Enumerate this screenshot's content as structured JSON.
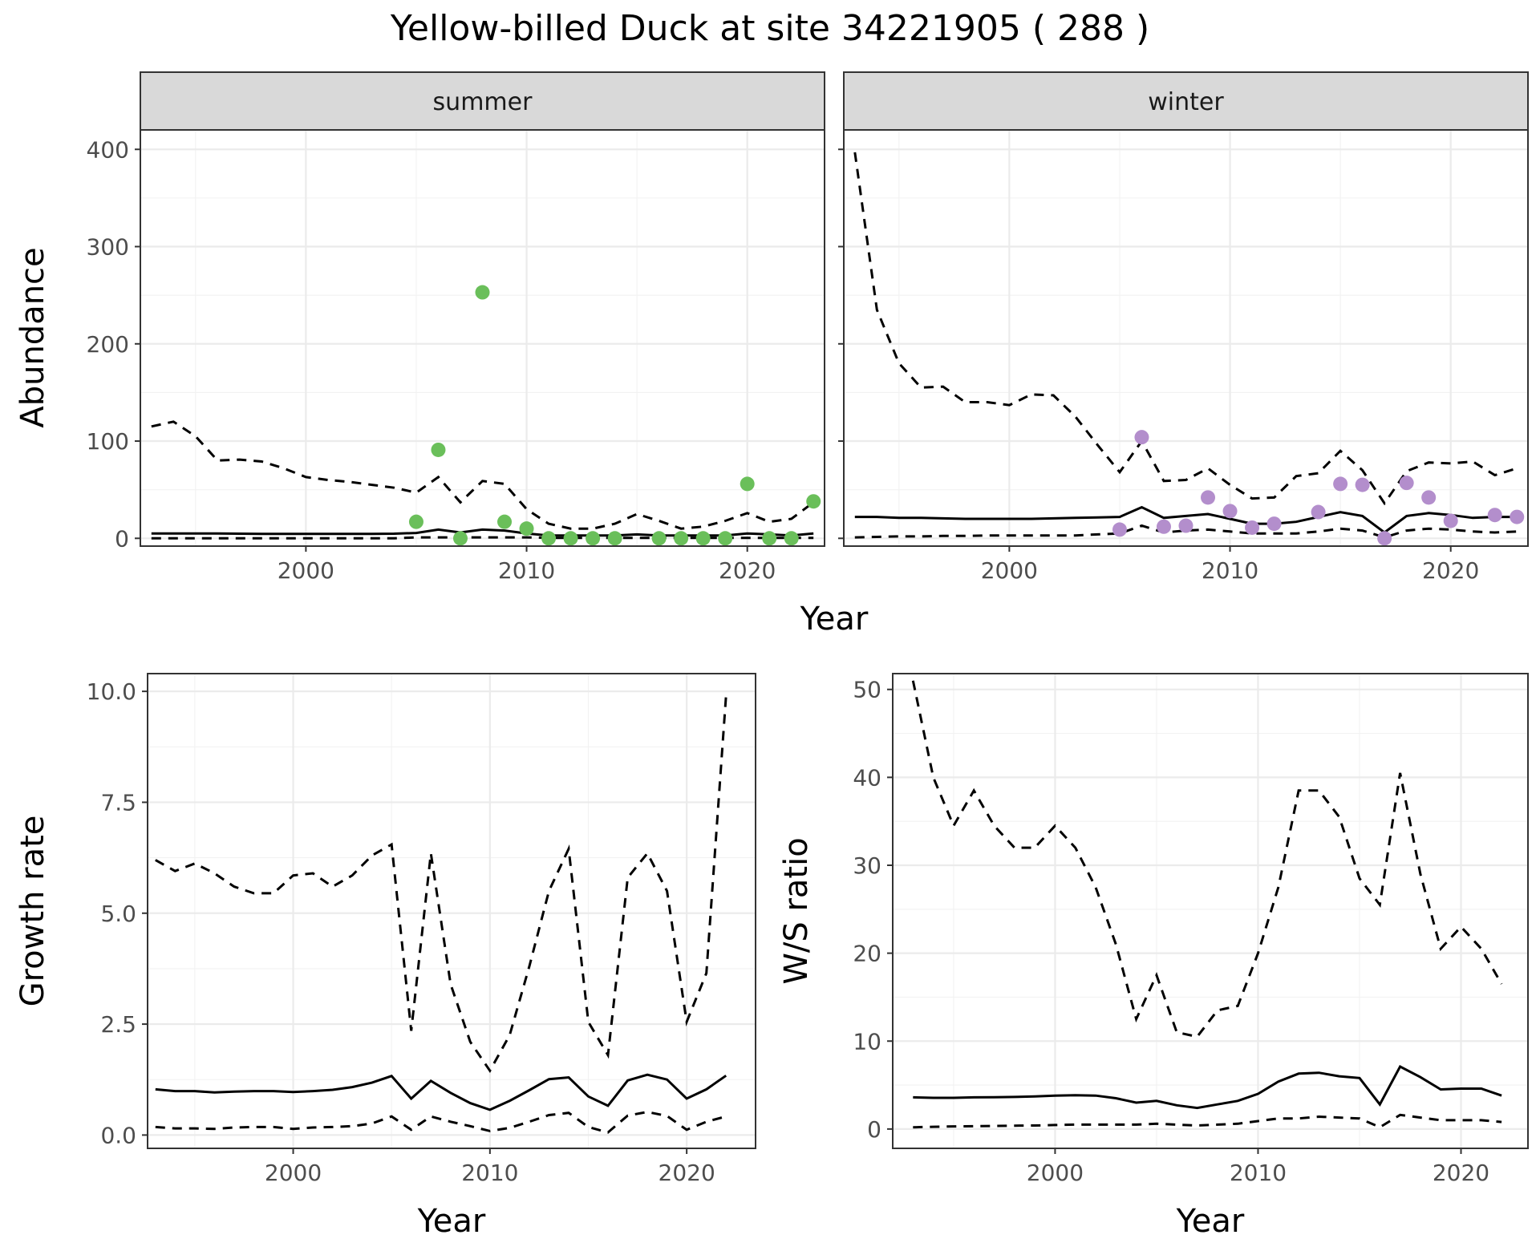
{
  "title": "Yellow-billed Duck at site 34221905 ( 288 )",
  "colors": {
    "summer_points": "#6ABF5A",
    "winter_points": "#B38ECC",
    "lines": "#000000"
  },
  "chart_data": [
    {
      "type": "line",
      "panel": "summer",
      "facet_label": "summer",
      "xlabel": "Year",
      "ylabel": "Abundance",
      "xlim": [
        1992.5,
        2023.5
      ],
      "ylim": [
        -8,
        420
      ],
      "xticks": [
        2000,
        2010,
        2020
      ],
      "yticks": [
        0,
        100,
        200,
        300,
        400
      ],
      "grid": true,
      "points_color": "#6ABF5A",
      "points": [
        {
          "x": 2005,
          "y": 17
        },
        {
          "x": 2006,
          "y": 91
        },
        {
          "x": 2007,
          "y": 0
        },
        {
          "x": 2008,
          "y": 253
        },
        {
          "x": 2009,
          "y": 17
        },
        {
          "x": 2010,
          "y": 10
        },
        {
          "x": 2011,
          "y": 0
        },
        {
          "x": 2012,
          "y": 0
        },
        {
          "x": 2013,
          "y": 0
        },
        {
          "x": 2014,
          "y": 0
        },
        {
          "x": 2016,
          "y": 0
        },
        {
          "x": 2017,
          "y": 0
        },
        {
          "x": 2018,
          "y": 0
        },
        {
          "x": 2019,
          "y": 0
        },
        {
          "x": 2020,
          "y": 56
        },
        {
          "x": 2021,
          "y": 0
        },
        {
          "x": 2022,
          "y": 0
        },
        {
          "x": 2023,
          "y": 38
        }
      ],
      "series": [
        {
          "style": "solid",
          "x": [
            1993,
            1994,
            1995,
            1996,
            1997,
            1998,
            1999,
            2000,
            2001,
            2002,
            2003,
            2004,
            2005,
            2006,
            2007,
            2008,
            2009,
            2010,
            2011,
            2012,
            2013,
            2014,
            2015,
            2016,
            2017,
            2018,
            2019,
            2020,
            2021,
            2022,
            2023
          ],
          "y": [
            5,
            5,
            5,
            5,
            4.8,
            4.6,
            4.6,
            4.6,
            4.5,
            4.5,
            4.6,
            4.8,
            5.5,
            9,
            6,
            9,
            8,
            5,
            3,
            3,
            3,
            3,
            4,
            3,
            3,
            3,
            3,
            5,
            4,
            3,
            5
          ]
        },
        {
          "style": "dashed",
          "x": [
            1993,
            1994,
            1995,
            1996,
            1997,
            1998,
            1999,
            2000,
            2001,
            2002,
            2003,
            2004,
            2005,
            2006,
            2007,
            2008,
            2009,
            2010,
            2011,
            2012,
            2013,
            2014,
            2015,
            2016,
            2017,
            2018,
            2019,
            2020,
            2021,
            2022,
            2023
          ],
          "y": [
            115,
            120,
            105,
            80,
            81,
            79,
            72,
            63,
            60,
            58,
            55,
            52,
            47,
            63,
            37,
            59,
            56,
            30,
            15,
            10,
            10,
            15,
            25,
            18,
            10,
            12,
            18,
            26,
            17,
            20,
            37
          ]
        },
        {
          "style": "dashed",
          "x": [
            1993,
            1994,
            1995,
            1996,
            1997,
            1998,
            1999,
            2000,
            2001,
            2002,
            2003,
            2004,
            2005,
            2006,
            2007,
            2008,
            2009,
            2010,
            2011,
            2012,
            2013,
            2014,
            2015,
            2016,
            2017,
            2018,
            2019,
            2020,
            2021,
            2022,
            2023
          ],
          "y": [
            0,
            0,
            0,
            0,
            0,
            0,
            0,
            0,
            0,
            0,
            0,
            0,
            1,
            1,
            1,
            1,
            1,
            1,
            0.5,
            0.5,
            0.5,
            0.5,
            0.5,
            0.5,
            0.5,
            0.5,
            0.5,
            0.5,
            0.5,
            0.5,
            0.5
          ]
        }
      ]
    },
    {
      "type": "line",
      "panel": "winter",
      "facet_label": "winter",
      "xlabel": "Year",
      "ylabel": "Abundance",
      "xlim": [
        1992.5,
        2023.5
      ],
      "ylim": [
        -8,
        420
      ],
      "xticks": [
        2000,
        2010,
        2020
      ],
      "yticks": [
        0,
        100,
        200,
        300,
        400
      ],
      "grid": true,
      "points_color": "#B38ECC",
      "points": [
        {
          "x": 2005,
          "y": 9
        },
        {
          "x": 2006,
          "y": 104
        },
        {
          "x": 2007,
          "y": 12
        },
        {
          "x": 2008,
          "y": 13
        },
        {
          "x": 2009,
          "y": 42
        },
        {
          "x": 2010,
          "y": 28
        },
        {
          "x": 2011,
          "y": 11
        },
        {
          "x": 2012,
          "y": 15
        },
        {
          "x": 2014,
          "y": 27
        },
        {
          "x": 2015,
          "y": 56
        },
        {
          "x": 2016,
          "y": 55
        },
        {
          "x": 2017,
          "y": 0
        },
        {
          "x": 2018,
          "y": 57
        },
        {
          "x": 2019,
          "y": 42
        },
        {
          "x": 2020,
          "y": 18
        },
        {
          "x": 2022,
          "y": 24
        },
        {
          "x": 2023,
          "y": 22
        }
      ],
      "series": [
        {
          "style": "solid",
          "x": [
            1993,
            1994,
            1995,
            1996,
            1997,
            1998,
            1999,
            2000,
            2001,
            2002,
            2003,
            2004,
            2005,
            2006,
            2007,
            2008,
            2009,
            2010,
            2011,
            2012,
            2013,
            2014,
            2015,
            2016,
            2017,
            2018,
            2019,
            2020,
            2021,
            2022,
            2023
          ],
          "y": [
            22,
            22,
            21,
            21,
            20.5,
            20,
            20,
            20,
            20,
            20.5,
            21,
            21.5,
            22,
            32,
            21,
            23,
            25,
            20,
            15,
            15,
            17,
            22,
            27,
            23,
            6,
            23,
            26,
            24,
            21,
            22,
            22
          ]
        },
        {
          "style": "dashed",
          "x": [
            1993,
            1994,
            1995,
            1996,
            1997,
            1998,
            1999,
            2000,
            2001,
            2002,
            2003,
            2004,
            2005,
            2006,
            2007,
            2008,
            2009,
            2010,
            2011,
            2012,
            2013,
            2014,
            2015,
            2016,
            2017,
            2018,
            2019,
            2020,
            2021,
            2022,
            2023
          ],
          "y": [
            397,
            235,
            180,
            155,
            156,
            140,
            140,
            137,
            148,
            147,
            125,
            96,
            68,
            100,
            59,
            60,
            72,
            55,
            41,
            42,
            64,
            67,
            90,
            70,
            36,
            69,
            78,
            77,
            79,
            65,
            72
          ]
        },
        {
          "style": "dashed",
          "x": [
            1993,
            1994,
            1995,
            1996,
            1997,
            1998,
            1999,
            2000,
            2001,
            2002,
            2003,
            2004,
            2005,
            2006,
            2007,
            2008,
            2009,
            2010,
            2011,
            2012,
            2013,
            2014,
            2015,
            2016,
            2017,
            2018,
            2019,
            2020,
            2021,
            2022,
            2023
          ],
          "y": [
            1,
            1.5,
            2,
            2,
            2.5,
            2.5,
            3,
            3,
            3,
            3,
            3,
            4,
            5,
            13,
            6,
            8,
            9,
            7,
            5,
            5,
            5,
            7,
            10,
            8,
            1,
            8,
            10,
            9,
            7,
            6,
            7
          ]
        }
      ]
    },
    {
      "type": "line",
      "panel": "growth",
      "xlabel": "Year",
      "ylabel": "Growth rate",
      "xlim": [
        1992.6,
        2023.5
      ],
      "ylim": [
        -0.3,
        10.4
      ],
      "xticks": [
        2000,
        2010,
        2020
      ],
      "yticks": [
        0.0,
        2.5,
        5.0,
        7.5,
        10.0
      ],
      "ytick_labels": [
        "0.0",
        "2.5",
        "5.0",
        "7.5",
        "10.0"
      ],
      "grid": true,
      "series": [
        {
          "style": "solid",
          "x": [
            1993,
            1994,
            1995,
            1996,
            1997,
            1998,
            1999,
            2000,
            2001,
            2002,
            2003,
            2004,
            2005,
            2006,
            2007,
            2008,
            2009,
            2010,
            2011,
            2012,
            2013,
            2014,
            2015,
            2016,
            2017,
            2018,
            2019,
            2020,
            2021,
            2022
          ],
          "y": [
            1.03,
            0.99,
            0.99,
            0.96,
            0.98,
            0.99,
            0.99,
            0.97,
            0.99,
            1.02,
            1.08,
            1.18,
            1.33,
            0.82,
            1.22,
            0.95,
            0.72,
            0.57,
            0.77,
            1.01,
            1.26,
            1.3,
            0.87,
            0.66,
            1.23,
            1.36,
            1.25,
            0.82,
            1.03,
            1.34
          ]
        },
        {
          "style": "dashed",
          "x": [
            1993,
            1994,
            1995,
            1996,
            1997,
            1998,
            1999,
            2000,
            2001,
            2002,
            2003,
            2004,
            2005,
            2006,
            2007,
            2008,
            2009,
            2010,
            2011,
            2012,
            2013,
            2014,
            2015,
            2016,
            2017,
            2018,
            2019,
            2020,
            2021,
            2022
          ],
          "y": [
            6.2,
            5.95,
            6.12,
            5.9,
            5.6,
            5.45,
            5.45,
            5.85,
            5.9,
            5.6,
            5.85,
            6.3,
            6.55,
            2.35,
            6.35,
            3.4,
            2.1,
            1.45,
            2.25,
            3.8,
            5.5,
            6.45,
            2.55,
            1.8,
            5.8,
            6.35,
            5.5,
            2.55,
            3.65,
            9.9
          ]
        },
        {
          "style": "dashed",
          "x": [
            1993,
            1994,
            1995,
            1996,
            1997,
            1998,
            1999,
            2000,
            2001,
            2002,
            2003,
            2004,
            2005,
            2006,
            2007,
            2008,
            2009,
            2010,
            2011,
            2012,
            2013,
            2014,
            2015,
            2016,
            2017,
            2018,
            2019,
            2020,
            2021,
            2022
          ],
          "y": [
            0.18,
            0.15,
            0.15,
            0.14,
            0.17,
            0.18,
            0.18,
            0.14,
            0.17,
            0.18,
            0.2,
            0.26,
            0.42,
            0.12,
            0.42,
            0.3,
            0.2,
            0.09,
            0.16,
            0.3,
            0.45,
            0.5,
            0.18,
            0.06,
            0.44,
            0.52,
            0.43,
            0.12,
            0.3,
            0.42
          ]
        }
      ]
    },
    {
      "type": "line",
      "panel": "ws_ratio",
      "xlabel": "Year",
      "ylabel": "W/S ratio",
      "xlim": [
        1992.0,
        2023.3
      ],
      "ylim": [
        -2.2,
        51.8
      ],
      "xticks": [
        2000,
        2010,
        2020
      ],
      "yticks": [
        0,
        10,
        20,
        30,
        40,
        50
      ],
      "grid": true,
      "series": [
        {
          "style": "solid",
          "x": [
            1993,
            1994,
            1995,
            1996,
            1997,
            1998,
            1999,
            2000,
            2001,
            2002,
            2003,
            2004,
            2005,
            2006,
            2007,
            2008,
            2009,
            2010,
            2011,
            2012,
            2013,
            2014,
            2015,
            2016,
            2017,
            2018,
            2019,
            2020,
            2021,
            2022
          ],
          "y": [
            3.6,
            3.55,
            3.55,
            3.6,
            3.62,
            3.65,
            3.7,
            3.8,
            3.85,
            3.8,
            3.5,
            3.0,
            3.2,
            2.7,
            2.4,
            2.8,
            3.2,
            4.0,
            5.4,
            6.3,
            6.4,
            6.0,
            5.8,
            2.8,
            7.1,
            5.9,
            4.5,
            4.6,
            4.6,
            3.8
          ]
        },
        {
          "style": "dashed",
          "x": [
            1993,
            1994,
            1995,
            1996,
            1997,
            1998,
            1999,
            2000,
            2001,
            2002,
            2003,
            2004,
            2005,
            2006,
            2007,
            2008,
            2009,
            2010,
            2011,
            2012,
            2013,
            2014,
            2015,
            2016,
            2017,
            2018,
            2019,
            2020,
            2021,
            2022
          ],
          "y": [
            51,
            40,
            34.5,
            38.5,
            34.5,
            32,
            32,
            34.5,
            32,
            27.5,
            21,
            12.5,
            17.5,
            11,
            10.5,
            13.5,
            14,
            20,
            27.5,
            38.5,
            38.5,
            35.5,
            28.5,
            25.5,
            40.5,
            29,
            20.5,
            23,
            20.5,
            16.5
          ]
        },
        {
          "style": "dashed",
          "x": [
            1993,
            1994,
            1995,
            1996,
            1997,
            1998,
            1999,
            2000,
            2001,
            2002,
            2003,
            2004,
            2005,
            2006,
            2007,
            2008,
            2009,
            2010,
            2011,
            2012,
            2013,
            2014,
            2015,
            2016,
            2017,
            2018,
            2019,
            2020,
            2021,
            2022
          ],
          "y": [
            0.2,
            0.25,
            0.3,
            0.32,
            0.35,
            0.38,
            0.4,
            0.45,
            0.5,
            0.5,
            0.5,
            0.5,
            0.6,
            0.5,
            0.4,
            0.5,
            0.6,
            0.9,
            1.2,
            1.2,
            1.4,
            1.3,
            1.2,
            0.2,
            1.6,
            1.3,
            1.0,
            1.0,
            1.0,
            0.8
          ]
        }
      ]
    }
  ]
}
